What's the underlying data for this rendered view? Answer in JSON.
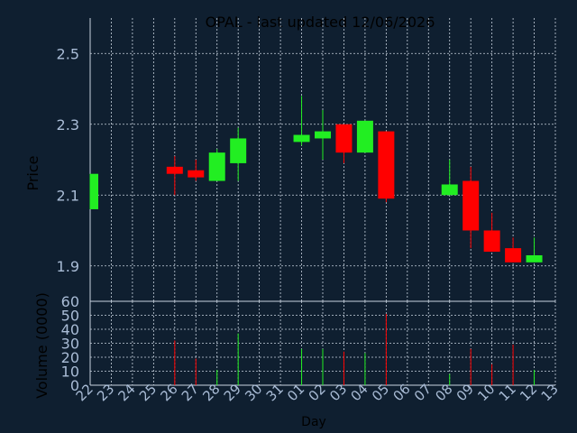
{
  "chart_data": {
    "type": "candlestick",
    "title": "OPAL - last updated 12/06/2026",
    "colors": {
      "background": "#0f1f30",
      "title": "#ffff33",
      "axis_text": "#a9bcd6",
      "grid": "#c9d3df",
      "up": "#22ee22",
      "down": "#ff0000"
    },
    "x_labels": [
      "22",
      "23",
      "24",
      "25",
      "26",
      "27",
      "28",
      "29",
      "30",
      "31",
      "01",
      "02",
      "03",
      "04",
      "05",
      "06",
      "07",
      "08",
      "09",
      "10",
      "11",
      "12",
      "13"
    ],
    "xlabel": "Day",
    "price_panel": {
      "ylabel": "Price",
      "ylim": [
        1.8,
        2.6
      ],
      "ticks": [
        "1.9",
        "2.1",
        "2.3",
        "2.5"
      ],
      "grid": true
    },
    "volume_panel": {
      "ylabel": "Volume (0000)",
      "ylim": [
        0,
        60
      ],
      "ticks": [
        "0",
        "10",
        "20",
        "30",
        "40",
        "50",
        "60"
      ],
      "grid": true
    },
    "candles": [
      {
        "day": "22",
        "open": 2.06,
        "high": 2.16,
        "low": 2.06,
        "close": 2.16,
        "volume": 0
      },
      {
        "day": "26",
        "open": 2.18,
        "high": 2.21,
        "low": 2.1,
        "close": 2.16,
        "volume": 32
      },
      {
        "day": "27",
        "open": 2.17,
        "high": 2.2,
        "low": 2.14,
        "close": 2.15,
        "volume": 19
      },
      {
        "day": "28",
        "open": 2.14,
        "high": 2.23,
        "low": 2.14,
        "close": 2.22,
        "volume": 11
      },
      {
        "day": "29",
        "open": 2.19,
        "high": 2.29,
        "low": 2.14,
        "close": 2.26,
        "volume": 37
      },
      {
        "day": "01",
        "open": 2.25,
        "high": 2.38,
        "low": 2.24,
        "close": 2.27,
        "volume": 26
      },
      {
        "day": "02",
        "open": 2.26,
        "high": 2.34,
        "low": 2.2,
        "close": 2.28,
        "volume": 26
      },
      {
        "day": "03",
        "open": 2.3,
        "high": 2.3,
        "low": 2.19,
        "close": 2.22,
        "volume": 24
      },
      {
        "day": "04",
        "open": 2.22,
        "high": 2.31,
        "low": 2.22,
        "close": 2.31,
        "volume": 23
      },
      {
        "day": "05",
        "open": 2.28,
        "high": 2.28,
        "low": 2.08,
        "close": 2.09,
        "volume": 51
      },
      {
        "day": "08",
        "open": 2.1,
        "high": 2.2,
        "low": 2.1,
        "close": 2.13,
        "volume": 8
      },
      {
        "day": "09",
        "open": 2.14,
        "high": 2.18,
        "low": 1.95,
        "close": 2.0,
        "volume": 26
      },
      {
        "day": "10",
        "open": 2.0,
        "high": 2.05,
        "low": 1.94,
        "close": 1.94,
        "volume": 15
      },
      {
        "day": "11",
        "open": 1.95,
        "high": 1.98,
        "low": 1.91,
        "close": 1.91,
        "volume": 29
      },
      {
        "day": "12",
        "open": 1.91,
        "high": 1.98,
        "low": 1.91,
        "close": 1.93,
        "volume": 11
      }
    ]
  }
}
